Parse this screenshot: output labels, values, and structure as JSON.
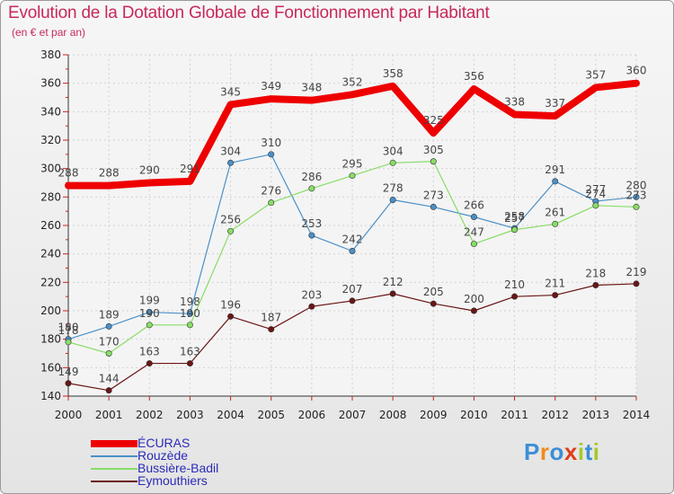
{
  "header": {
    "title": "Evolution de la Dotation Globale de Fonctionnement par Habitant",
    "subtitle": "(en € et par an)"
  },
  "chart_data": {
    "type": "line",
    "title": "Evolution de la Dotation Globale de Fonctionnement par Habitant",
    "subtitle": "(en € et par an)",
    "xlabel": "",
    "ylabel": "",
    "categories": [
      "2000",
      "2001",
      "2002",
      "2003",
      "2004",
      "2005",
      "2006",
      "2007",
      "2008",
      "2009",
      "2010",
      "2011",
      "2012",
      "2013",
      "2014"
    ],
    "ylim": [
      140,
      380
    ],
    "yticks": [
      140,
      160,
      180,
      200,
      220,
      240,
      260,
      280,
      300,
      320,
      340,
      360,
      380
    ],
    "grid": true,
    "legend_position": "bottom-left",
    "series": [
      {
        "name": "ÉCURAS",
        "color": "#ee0000",
        "values": [
          288,
          288,
          290,
          291,
          345,
          349,
          348,
          352,
          358,
          325,
          356,
          338,
          337,
          357,
          360
        ]
      },
      {
        "name": "Rouzède",
        "color": "#4a90c8",
        "values": [
          180,
          189,
          199,
          198,
          304,
          310,
          253,
          242,
          278,
          273,
          266,
          258,
          291,
          277,
          280
        ]
      },
      {
        "name": "Bussière-Badil",
        "color": "#88dd66",
        "values": [
          178,
          170,
          190,
          190,
          256,
          276,
          286,
          295,
          304,
          305,
          247,
          257,
          261,
          274,
          273
        ]
      },
      {
        "name": "Eymouthiers",
        "color": "#6b1515",
        "values": [
          149,
          144,
          163,
          163,
          196,
          187,
          203,
          207,
          212,
          205,
          200,
          210,
          211,
          218,
          219
        ]
      }
    ]
  },
  "legend": {
    "items": [
      {
        "label": "ÉCURAS",
        "color": "#ee0000"
      },
      {
        "label": "Rouzède",
        "color": "#4a90c8"
      },
      {
        "label": "Bussière-Badil",
        "color": "#88dd66"
      },
      {
        "label": "Eymouthiers",
        "color": "#6b1515"
      }
    ]
  },
  "logo": {
    "letters": [
      "P",
      "r",
      "o",
      "x",
      "i",
      "t",
      "i"
    ],
    "colors": [
      "#3b8fd6",
      "#f08a1c",
      "#3b8fd6",
      "#e03c1c",
      "#a5c928",
      "#3b8fd6",
      "#a5c928"
    ]
  }
}
